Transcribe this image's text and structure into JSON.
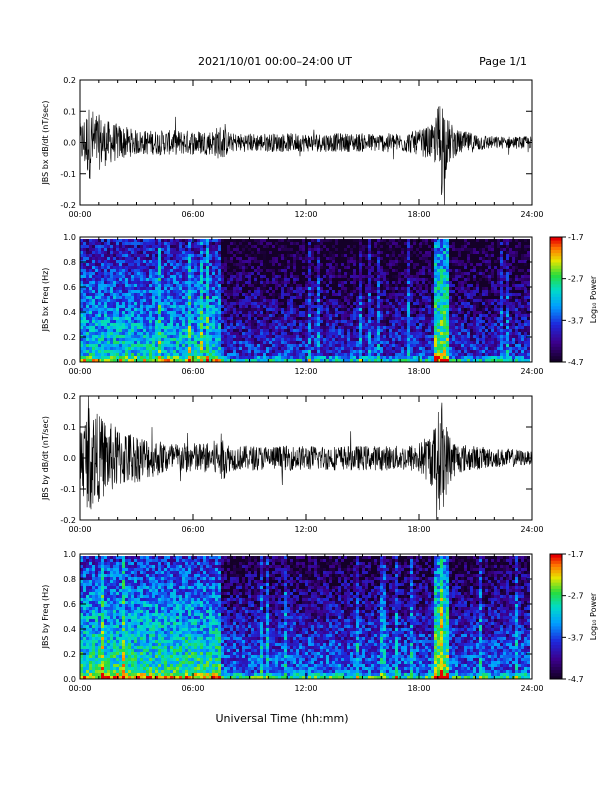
{
  "header": {
    "title": "2021/10/01  00:00–24:00 UT",
    "page": "Page 1/1"
  },
  "footer": {
    "xlabel": "Universal Time (hh:mm)"
  },
  "colors": {
    "line": "#000000",
    "background": "#ffffff"
  },
  "chart_data": [
    {
      "type": "line",
      "ylabel": "JBS bx dB/dt (nT/sec)",
      "xlim": [
        0,
        24
      ],
      "ylim": [
        -0.2,
        0.2
      ],
      "xticks": [
        "00:00",
        "06:00",
        "12:00",
        "18:00",
        "24:00"
      ],
      "yticks": [
        "-0.2",
        "-0.1",
        "0.0",
        "0.1",
        "0.2"
      ],
      "series": [
        {
          "x": [
            0,
            0.5,
            1,
            1.5,
            2,
            3,
            4,
            5,
            6,
            7,
            7.5,
            8,
            9,
            10,
            11,
            12,
            13,
            14,
            15,
            16,
            17,
            18,
            18.8,
            19.2,
            19.5,
            20,
            21,
            22,
            23,
            24
          ],
          "envelope": [
            0.06,
            0.12,
            0.09,
            0.07,
            0.06,
            0.04,
            0.04,
            0.04,
            0.04,
            0.04,
            0.06,
            0.03,
            0.03,
            0.03,
            0.03,
            0.03,
            0.03,
            0.03,
            0.03,
            0.03,
            0.03,
            0.04,
            0.06,
            0.18,
            0.08,
            0.04,
            0.03,
            0.02,
            0.02,
            0.02
          ]
        }
      ]
    },
    {
      "type": "heatmap",
      "ylabel": "JBS bx Freq (Hz)",
      "xlim": [
        0,
        24
      ],
      "ylim": [
        0,
        1.0
      ],
      "xticks": [
        "00:00",
        "06:00",
        "12:00",
        "18:00",
        "24:00"
      ],
      "yticks": [
        "0.0",
        "0.2",
        "0.4",
        "0.6",
        "0.8",
        "1.0"
      ],
      "colorbar": {
        "label": "Log₁₀ Power",
        "ticks": [
          "-1.7",
          "-2.7",
          "-3.7",
          "-4.7"
        ],
        "range": [
          -4.7,
          -1.7
        ]
      }
    },
    {
      "type": "line",
      "ylabel": "JBS by dB/dt (nT/sec)",
      "xlim": [
        0,
        24
      ],
      "ylim": [
        -0.2,
        0.2
      ],
      "xticks": [
        "00:00",
        "06:00",
        "12:00",
        "18:00",
        "24:00"
      ],
      "yticks": [
        "-0.2",
        "-0.1",
        "0.0",
        "0.1",
        "0.2"
      ],
      "series": [
        {
          "x": [
            0,
            0.5,
            1,
            1.5,
            2,
            3,
            4,
            5,
            6,
            7,
            7.5,
            8,
            9,
            10,
            11,
            12,
            13,
            14,
            15,
            16,
            17,
            18,
            18.8,
            19.2,
            19.5,
            20,
            21,
            22,
            23,
            24
          ],
          "envelope": [
            0.1,
            0.18,
            0.14,
            0.12,
            0.1,
            0.08,
            0.06,
            0.05,
            0.05,
            0.05,
            0.08,
            0.04,
            0.04,
            0.04,
            0.04,
            0.04,
            0.04,
            0.04,
            0.04,
            0.04,
            0.04,
            0.05,
            0.1,
            0.2,
            0.1,
            0.05,
            0.04,
            0.03,
            0.03,
            0.02
          ]
        }
      ]
    },
    {
      "type": "heatmap",
      "ylabel": "JBS by Freq (Hz)",
      "xlim": [
        0,
        24
      ],
      "ylim": [
        0,
        1.0
      ],
      "xticks": [
        "00:00",
        "06:00",
        "12:00",
        "18:00",
        "24:00"
      ],
      "yticks": [
        "0.0",
        "0.2",
        "0.4",
        "0.6",
        "0.8",
        "1.0"
      ],
      "colorbar": {
        "label": "Log₁₀ Power",
        "ticks": [
          "-1.7",
          "-2.7",
          "-3.7",
          "-4.7"
        ],
        "range": [
          -4.7,
          -1.7
        ]
      }
    }
  ]
}
